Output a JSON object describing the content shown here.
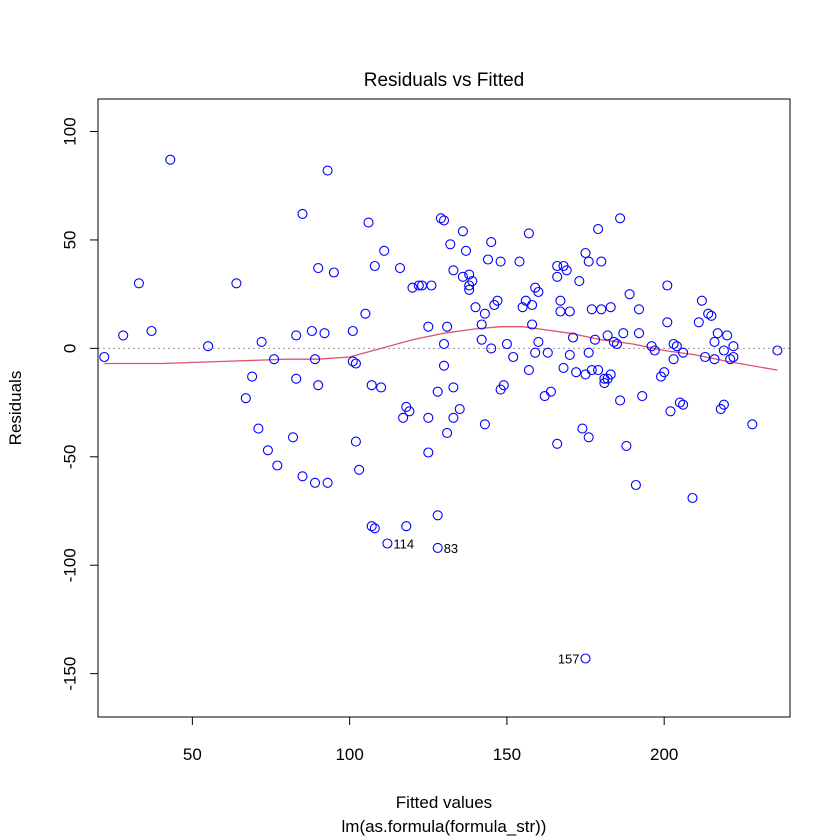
{
  "chart_data": {
    "type": "scatter",
    "title": "Residuals vs Fitted",
    "xlabel": "Fitted values",
    "sublabel": "lm(as.formula(formula_str))",
    "ylabel": "Residuals",
    "xlim": [
      20,
      240
    ],
    "ylim": [
      -170,
      115
    ],
    "x_ticks": [
      50,
      100,
      150,
      200
    ],
    "y_ticks": [
      100,
      50,
      0,
      -50,
      -100,
      -150
    ],
    "reference_line": 0,
    "point_color": "#0000ff",
    "smooth_color": "#df536b",
    "reference_color": "#999999",
    "points": [
      [
        22,
        -4
      ],
      [
        28,
        6
      ],
      [
        33,
        30
      ],
      [
        37,
        8
      ],
      [
        43,
        87
      ],
      [
        55,
        1
      ],
      [
        64,
        30
      ],
      [
        67,
        -23
      ],
      [
        69,
        -13
      ],
      [
        71,
        -37
      ],
      [
        72,
        3
      ],
      [
        74,
        -47
      ],
      [
        76,
        -5
      ],
      [
        77,
        -54
      ],
      [
        82,
        -41
      ],
      [
        83,
        6
      ],
      [
        83,
        -14
      ],
      [
        85,
        62
      ],
      [
        85,
        -59
      ],
      [
        88,
        8
      ],
      [
        89,
        -5
      ],
      [
        89,
        -62
      ],
      [
        90,
        37
      ],
      [
        90,
        -17
      ],
      [
        92,
        7
      ],
      [
        93,
        82
      ],
      [
        93,
        -62
      ],
      [
        95,
        35
      ],
      [
        101,
        -6
      ],
      [
        101,
        8
      ],
      [
        102,
        -7
      ],
      [
        102,
        -43
      ],
      [
        103,
        -56
      ],
      [
        105,
        16
      ],
      [
        106,
        58
      ],
      [
        107,
        -17
      ],
      [
        107,
        -82
      ],
      [
        108,
        38
      ],
      [
        108,
        -83
      ],
      [
        110,
        -18
      ],
      [
        111,
        45
      ],
      [
        112,
        -90
      ],
      [
        116,
        37
      ],
      [
        117,
        -32
      ],
      [
        118,
        -27
      ],
      [
        118,
        -82
      ],
      [
        119,
        -29
      ],
      [
        120,
        28
      ],
      [
        122,
        29
      ],
      [
        123,
        29
      ],
      [
        125,
        -32
      ],
      [
        125,
        -48
      ],
      [
        125,
        10
      ],
      [
        126,
        29
      ],
      [
        128,
        -20
      ],
      [
        128,
        -77
      ],
      [
        128,
        -92
      ],
      [
        129,
        60
      ],
      [
        130,
        59
      ],
      [
        130,
        2
      ],
      [
        130,
        -8
      ],
      [
        131,
        10
      ],
      [
        131,
        -39
      ],
      [
        132,
        48
      ],
      [
        133,
        -18
      ],
      [
        133,
        -32
      ],
      [
        133,
        36
      ],
      [
        135,
        -28
      ],
      [
        136,
        54
      ],
      [
        136,
        33
      ],
      [
        137,
        45
      ],
      [
        138,
        34
      ],
      [
        138,
        29
      ],
      [
        138,
        27
      ],
      [
        139,
        31
      ],
      [
        140,
        19
      ],
      [
        142,
        11
      ],
      [
        142,
        4
      ],
      [
        143,
        16
      ],
      [
        143,
        -35
      ],
      [
        144,
        41
      ],
      [
        145,
        49
      ],
      [
        145,
        0
      ],
      [
        146,
        20
      ],
      [
        147,
        22
      ],
      [
        148,
        40
      ],
      [
        148,
        -19
      ],
      [
        149,
        -17
      ],
      [
        150,
        2
      ],
      [
        152,
        -4
      ],
      [
        154,
        40
      ],
      [
        155,
        19
      ],
      [
        156,
        22
      ],
      [
        157,
        -10
      ],
      [
        157,
        53
      ],
      [
        158,
        11
      ],
      [
        158,
        20
      ],
      [
        159,
        28
      ],
      [
        159,
        -2
      ],
      [
        160,
        3
      ],
      [
        160,
        26
      ],
      [
        162,
        -22
      ],
      [
        163,
        -2
      ],
      [
        164,
        -20
      ],
      [
        166,
        38
      ],
      [
        166,
        -44
      ],
      [
        166,
        33
      ],
      [
        167,
        17
      ],
      [
        167,
        22
      ],
      [
        168,
        38
      ],
      [
        168,
        -9
      ],
      [
        169,
        36
      ],
      [
        170,
        -3
      ],
      [
        170,
        17
      ],
      [
        171,
        5
      ],
      [
        172,
        -11
      ],
      [
        173,
        31
      ],
      [
        174,
        -37
      ],
      [
        175,
        44
      ],
      [
        175,
        -12
      ],
      [
        175,
        -143
      ],
      [
        176,
        -2
      ],
      [
        176,
        40
      ],
      [
        176,
        -41
      ],
      [
        177,
        -10
      ],
      [
        177,
        18
      ],
      [
        178,
        4
      ],
      [
        179,
        55
      ],
      [
        179,
        -10
      ],
      [
        180,
        40
      ],
      [
        180,
        18
      ],
      [
        181,
        -16
      ],
      [
        181,
        -14
      ],
      [
        182,
        -14
      ],
      [
        182,
        6
      ],
      [
        183,
        19
      ],
      [
        183,
        -12
      ],
      [
        184,
        3
      ],
      [
        185,
        2
      ],
      [
        186,
        -24
      ],
      [
        186,
        60
      ],
      [
        187,
        7
      ],
      [
        188,
        -45
      ],
      [
        189,
        25
      ],
      [
        191,
        -63
      ],
      [
        192,
        18
      ],
      [
        192,
        7
      ],
      [
        193,
        -22
      ],
      [
        196,
        1
      ],
      [
        197,
        -1
      ],
      [
        199,
        -13
      ],
      [
        200,
        -11
      ],
      [
        201,
        12
      ],
      [
        201,
        29
      ],
      [
        202,
        -29
      ],
      [
        203,
        2
      ],
      [
        203,
        -5
      ],
      [
        204,
        1
      ],
      [
        205,
        -25
      ],
      [
        206,
        -26
      ],
      [
        206,
        -2
      ],
      [
        209,
        -69
      ],
      [
        211,
        12
      ],
      [
        212,
        22
      ],
      [
        213,
        -4
      ],
      [
        214,
        16
      ],
      [
        215,
        15
      ],
      [
        216,
        3
      ],
      [
        216,
        -5
      ],
      [
        217,
        7
      ],
      [
        218,
        -28
      ],
      [
        219,
        -26
      ],
      [
        219,
        -1
      ],
      [
        220,
        6
      ],
      [
        221,
        -5
      ],
      [
        222,
        -4
      ],
      [
        222,
        1
      ],
      [
        228,
        -35
      ],
      [
        236,
        -1
      ]
    ],
    "labeled_points": [
      {
        "label": "114",
        "x": 112,
        "y": -90
      },
      {
        "label": "83",
        "x": 128,
        "y": -92
      },
      {
        "label": "157",
        "x": 175,
        "y": -143
      }
    ],
    "smooth_curve": [
      [
        22,
        -7
      ],
      [
        40,
        -7
      ],
      [
        60,
        -6
      ],
      [
        80,
        -5
      ],
      [
        90,
        -5
      ],
      [
        100,
        -4
      ],
      [
        110,
        0
      ],
      [
        120,
        4
      ],
      [
        130,
        7
      ],
      [
        140,
        9
      ],
      [
        148,
        10
      ],
      [
        155,
        10
      ],
      [
        160,
        9
      ],
      [
        170,
        7
      ],
      [
        180,
        4
      ],
      [
        190,
        2
      ],
      [
        200,
        -1
      ],
      [
        210,
        -3
      ],
      [
        220,
        -6
      ],
      [
        236,
        -10
      ]
    ]
  }
}
